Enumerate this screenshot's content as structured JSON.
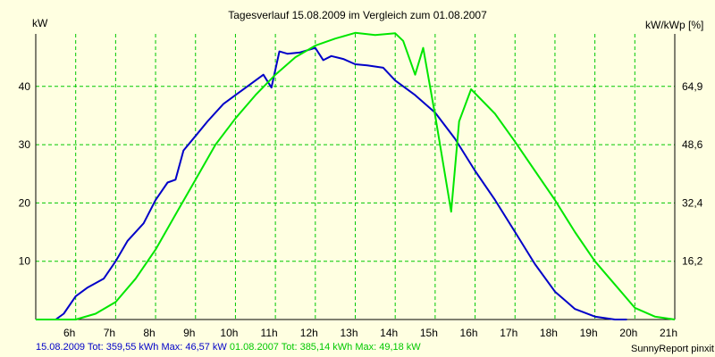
{
  "chart_data": {
    "type": "line",
    "title": "Tagesverlauf 15.08.2009 im Vergleich zum 01.08.2007",
    "ylabel_left": "kW",
    "ylabel_right": "kW/kWp [%]",
    "x_ticks": [
      "6h",
      "7h",
      "8h",
      "9h",
      "10h",
      "11h",
      "12h",
      "13h",
      "14h",
      "15h",
      "16h",
      "17h",
      "18h",
      "19h",
      "20h",
      "21h"
    ],
    "x_tick_values": [
      6,
      7,
      8,
      9,
      10,
      11,
      12,
      13,
      14,
      15,
      16,
      17,
      18,
      19,
      20,
      21
    ],
    "xlim": [
      5,
      21
    ],
    "ylim": [
      0,
      49
    ],
    "y_ticks": [
      10,
      20,
      30,
      40
    ],
    "y_tick_labels": [
      "10",
      "20",
      "30",
      "40"
    ],
    "y_right_ticks": [
      "16,2",
      "32,4",
      "48,6",
      "64,9"
    ],
    "grid": true,
    "series": [
      {
        "name": "15.08.2009",
        "color": "#0000c8",
        "x": [
          5.0,
          5.5,
          5.7,
          6.0,
          6.3,
          6.7,
          7.0,
          7.3,
          7.7,
          8.0,
          8.3,
          8.5,
          8.7,
          9.0,
          9.3,
          9.7,
          10.0,
          10.3,
          10.7,
          10.9,
          11.1,
          11.3,
          11.6,
          12.0,
          12.2,
          12.4,
          12.7,
          13.0,
          13.3,
          13.7,
          14.0,
          14.5,
          15.0,
          15.5,
          16.0,
          16.5,
          17.0,
          17.5,
          18.0,
          18.5,
          19.0,
          19.5,
          19.8
        ],
        "y": [
          0,
          0,
          1,
          4,
          5.5,
          7,
          10,
          13.5,
          16.5,
          20.5,
          23.5,
          24,
          29,
          31.5,
          34,
          37,
          38.5,
          40,
          42,
          39.8,
          46,
          45.6,
          45.8,
          46.6,
          44.5,
          45.2,
          44.7,
          43.8,
          43.6,
          43.2,
          41,
          38.5,
          35.5,
          31,
          25.5,
          20.5,
          15,
          9.5,
          4.8,
          1.8,
          0.5,
          0,
          0
        ]
      },
      {
        "name": "01.08.2007",
        "color": "#00e600",
        "x": [
          5.0,
          6.0,
          6.5,
          7.0,
          7.5,
          8.0,
          8.5,
          9.0,
          9.5,
          10.0,
          10.5,
          11.0,
          11.5,
          12.0,
          12.5,
          13.0,
          13.5,
          14.0,
          14.2,
          14.5,
          14.7,
          15.0,
          15.4,
          15.6,
          15.9,
          16.5,
          17.0,
          17.5,
          18.0,
          18.5,
          19.0,
          19.5,
          20.0,
          20.5,
          21.0
        ],
        "y": [
          0,
          0,
          1,
          3,
          7,
          12,
          18,
          24,
          30,
          34.5,
          38.5,
          42,
          45,
          47,
          48.2,
          49.18,
          48.8,
          49.1,
          47.8,
          42,
          46.6,
          35,
          18.5,
          34,
          39.5,
          35.3,
          30.5,
          25.5,
          20.5,
          15,
          10,
          6,
          2,
          0.5,
          0
        ]
      }
    ],
    "footer": {
      "s1_label": "15.08.2009 Tot: 359,55 kWh Max: 46,57 kW",
      "s2_label": "01.08.2007 Tot: 385,14 kWh Max: 49,18 kW"
    },
    "credit": "SunnyReport pinxit"
  },
  "colors": {
    "background": "#ffffe1",
    "grid": "#00c800",
    "axis": "#000000"
  }
}
